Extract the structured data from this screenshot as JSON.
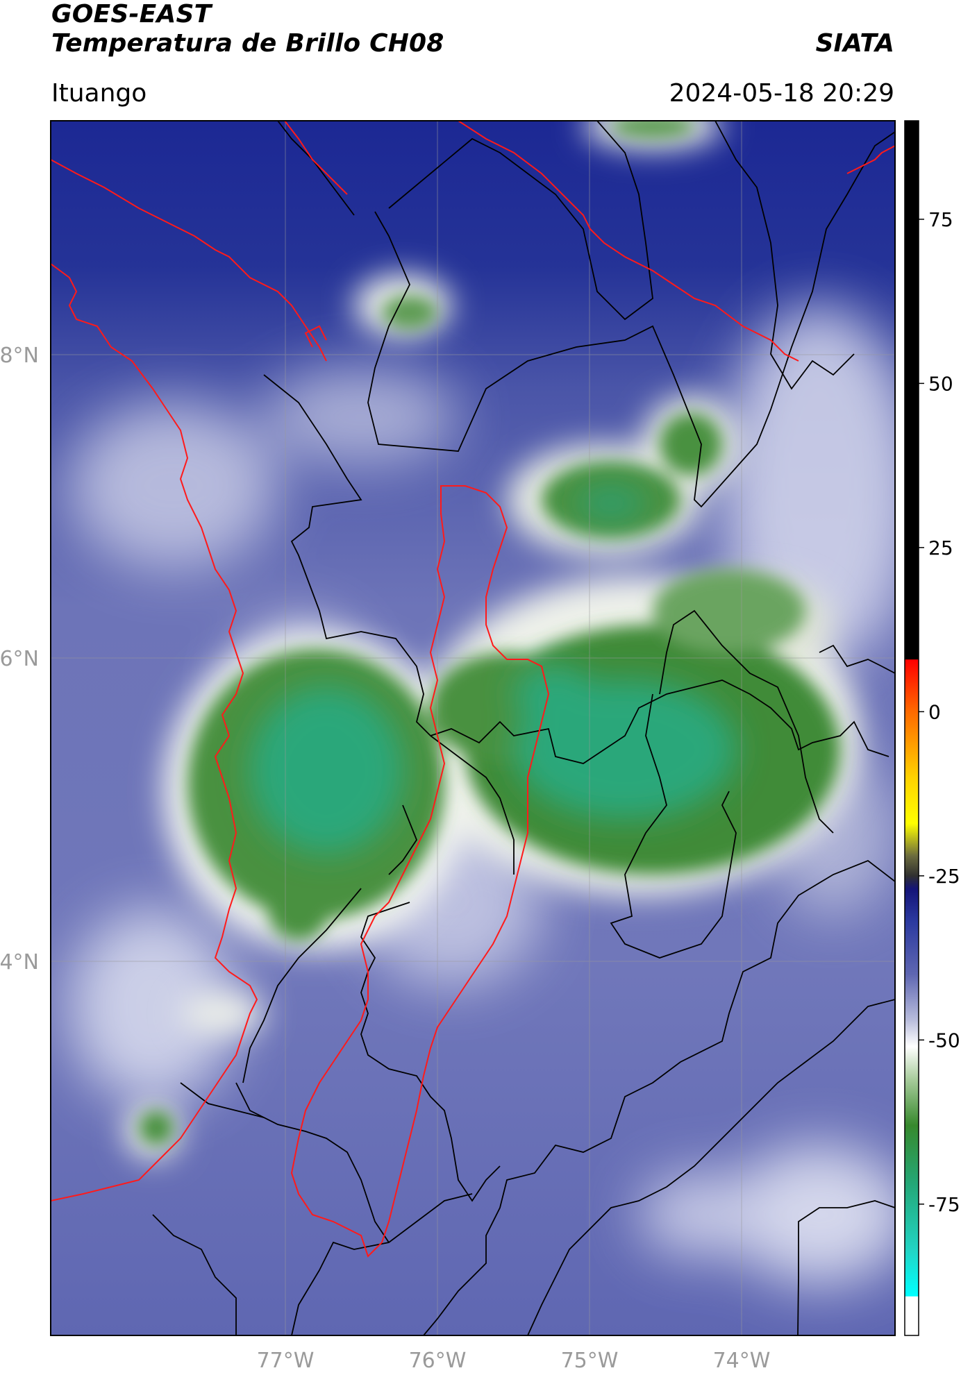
{
  "header": {
    "satellite": "GOES-EAST",
    "product": "Temperatura de Brillo CH08",
    "organization": "SIATA",
    "location": "Ituango",
    "datetime": "2024-05-18 20:29"
  },
  "map": {
    "lon_range": [
      -78.55,
      -73.13
    ],
    "lat_range": [
      1.45,
      9.55
    ],
    "lon_ticks": [
      -77,
      -76,
      -75,
      -74
    ],
    "lon_tick_labels": [
      "77°W",
      "76°W",
      "75°W",
      "74°W"
    ],
    "lat_ticks": [
      8,
      6,
      4
    ],
    "lat_tick_labels": [
      "8°N",
      "6°N",
      "4°N"
    ],
    "gridlines": true,
    "border_color": "#000000",
    "highlight_color": "#ff1a1a"
  },
  "colorbar": {
    "range": [
      -95,
      90
    ],
    "ticks": [
      75,
      50,
      25,
      0,
      -25,
      -50,
      -75
    ],
    "tick_labels": [
      "75",
      "50",
      "25",
      "0",
      "-25",
      "-50",
      "-75"
    ],
    "stops": [
      {
        "v": 90,
        "c": "#000000"
      },
      {
        "v": 8,
        "c": "#000000"
      },
      {
        "v": 7.9,
        "c": "#ff0000"
      },
      {
        "v": 0,
        "c": "#ff6a00"
      },
      {
        "v": -10,
        "c": "#ffd200"
      },
      {
        "v": -17,
        "c": "#ffff00"
      },
      {
        "v": -22,
        "c": "#6b6b3e"
      },
      {
        "v": -25,
        "c": "#303030"
      },
      {
        "v": -27,
        "c": "#141478"
      },
      {
        "v": -32,
        "c": "#2c3aa0"
      },
      {
        "v": -40,
        "c": "#5f67b2"
      },
      {
        "v": -47,
        "c": "#b9bddc"
      },
      {
        "v": -51,
        "c": "#ffffff"
      },
      {
        "v": -56,
        "c": "#a8cc9c"
      },
      {
        "v": -63,
        "c": "#37892d"
      },
      {
        "v": -72,
        "c": "#24a878"
      },
      {
        "v": -82,
        "c": "#22d4c4"
      },
      {
        "v": -89,
        "c": "#00ffff"
      },
      {
        "v": -89.1,
        "c": "#ffffff"
      },
      {
        "v": -95,
        "c": "#ffffff"
      }
    ]
  }
}
